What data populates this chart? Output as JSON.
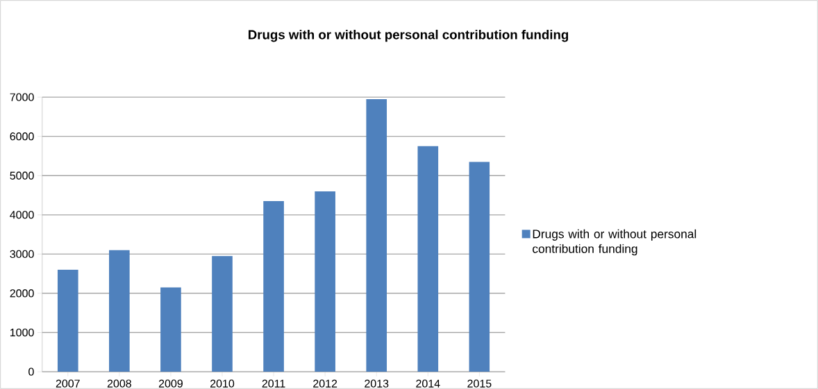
{
  "chart_data": {
    "type": "bar",
    "title": "Drugs with or without personal contribution funding",
    "categories": [
      "2007",
      "2008",
      "2009",
      "2010",
      "2011",
      "2012",
      "2013",
      "2014",
      "2015"
    ],
    "series": [
      {
        "name": "Drugs with or without personal contribution funding",
        "color": "#4f81bd",
        "values": [
          2600,
          3100,
          2150,
          2950,
          4350,
          4600,
          6950,
          5750,
          5350
        ]
      }
    ],
    "ylim": [
      0,
      7000
    ],
    "yticks": [
      0,
      1000,
      2000,
      3000,
      4000,
      5000,
      6000,
      7000
    ],
    "grid": "y",
    "legend": "right"
  }
}
